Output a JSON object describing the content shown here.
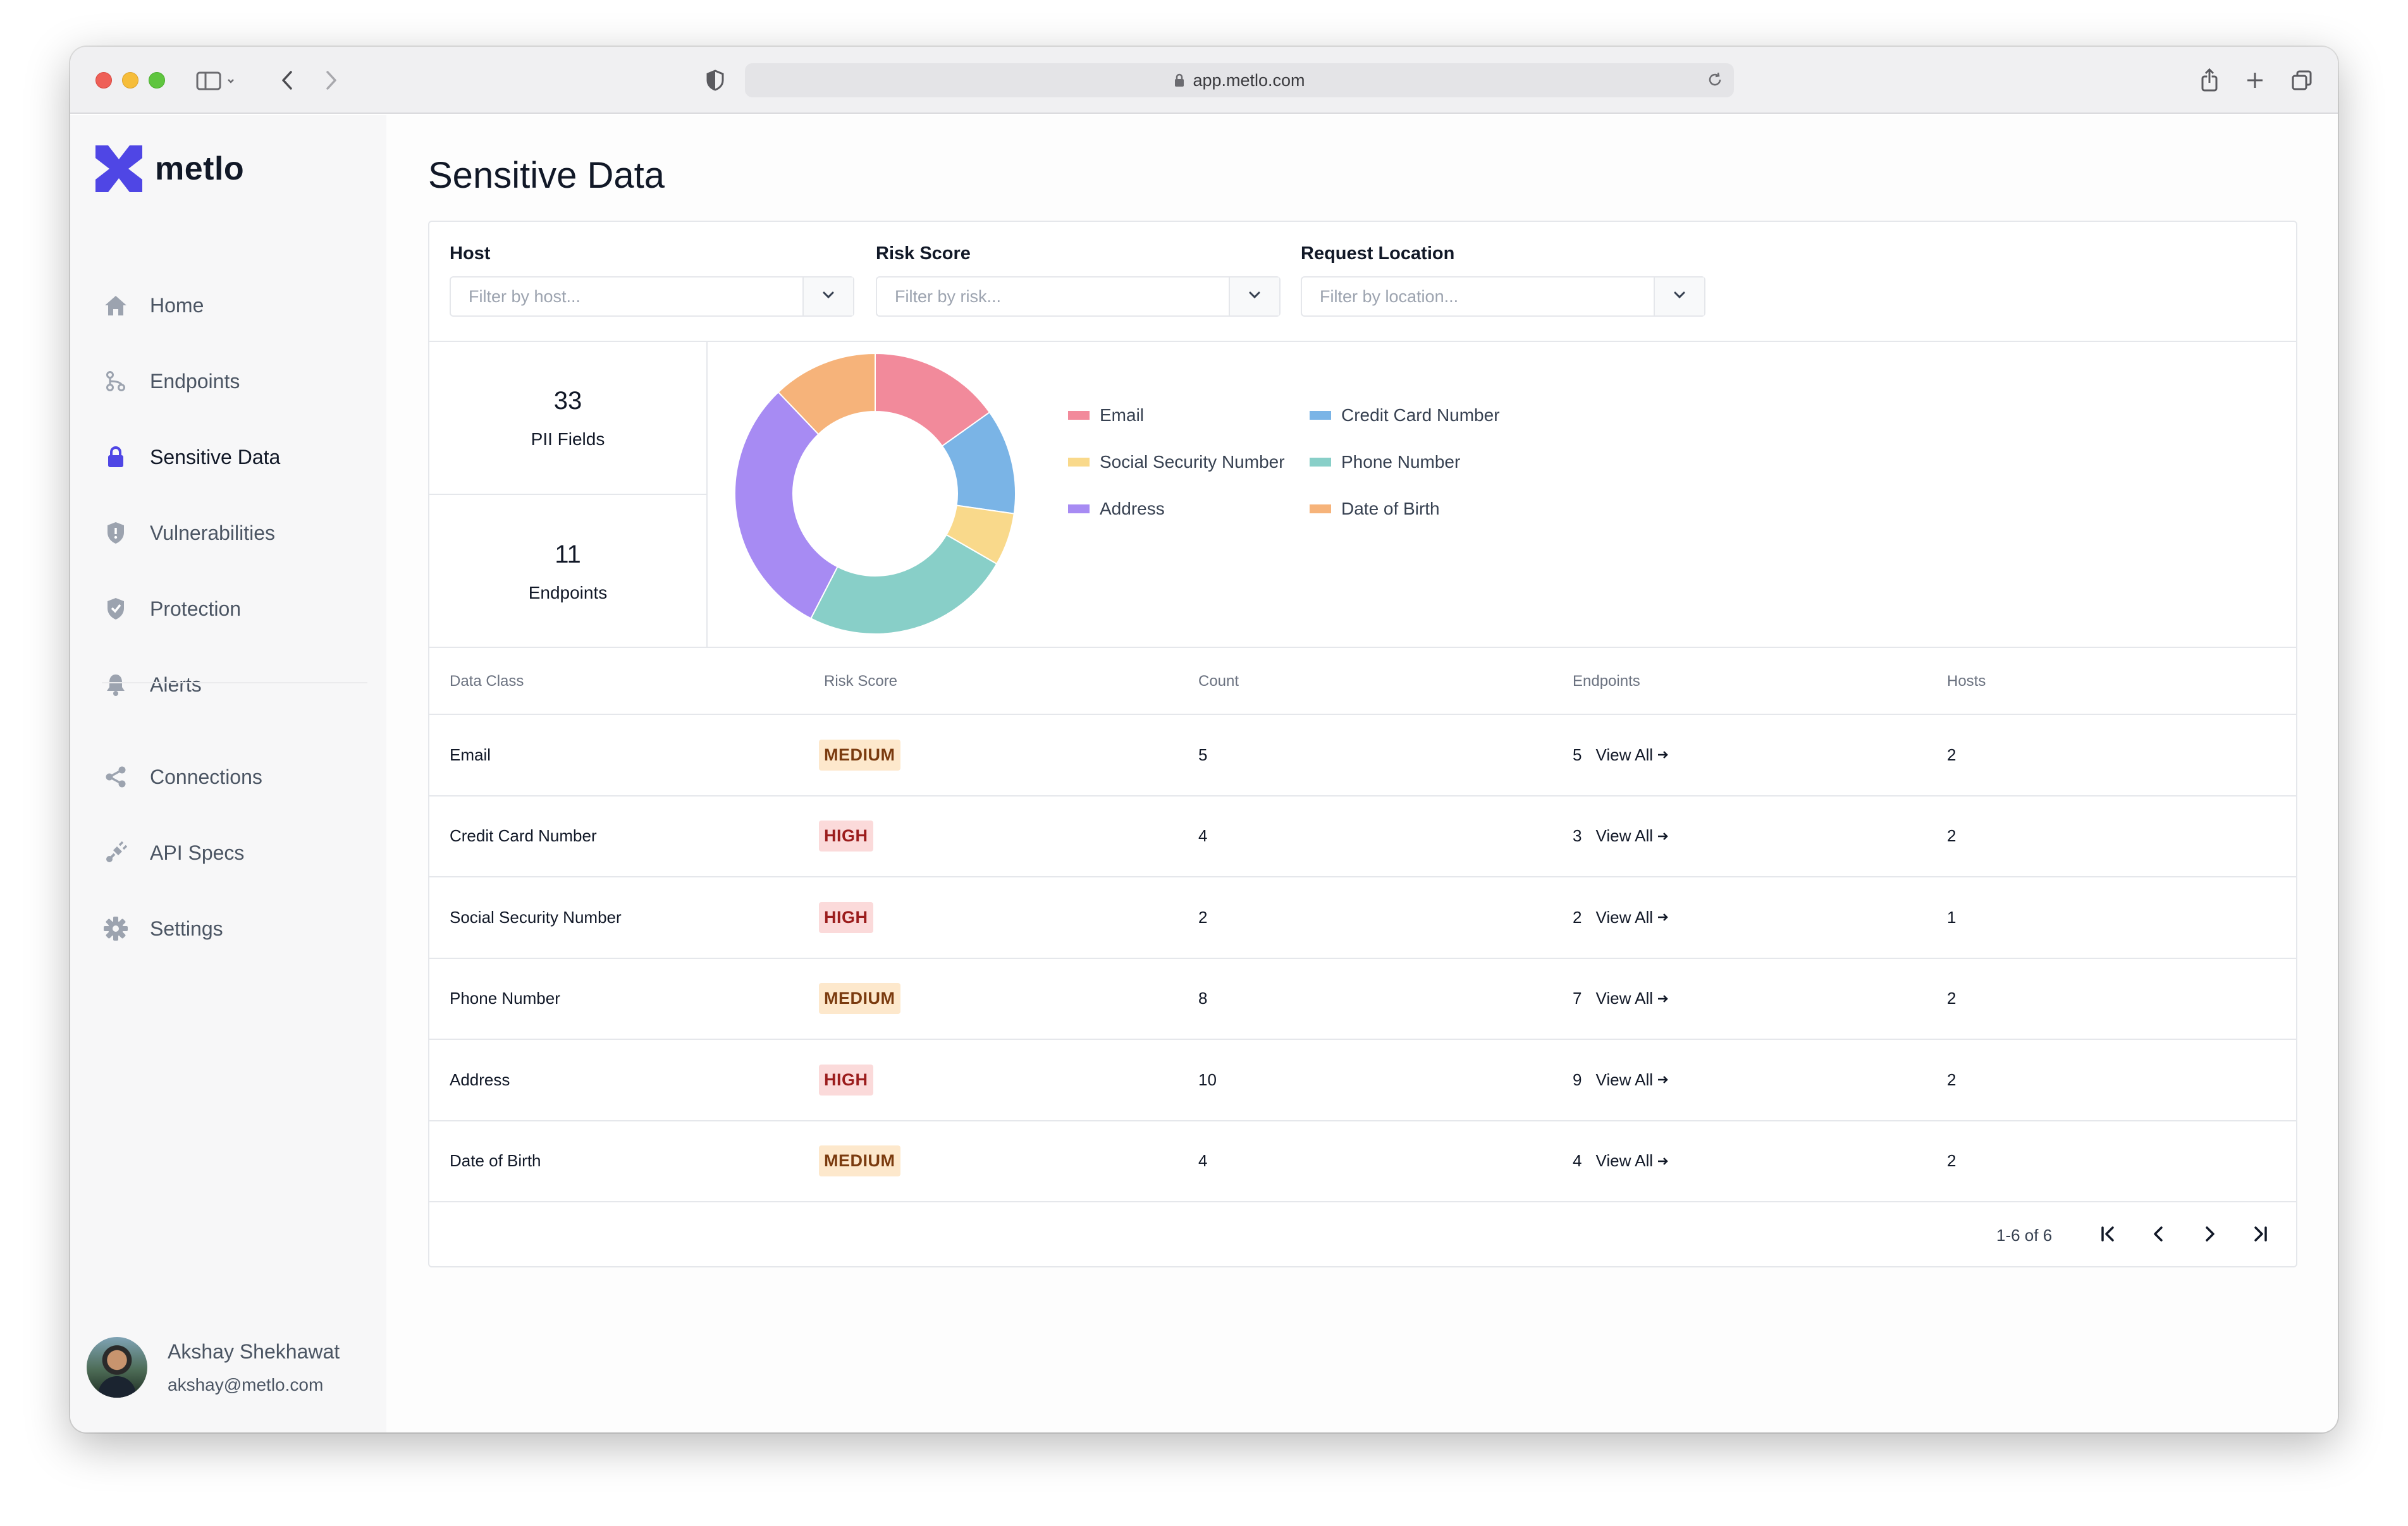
{
  "browser": {
    "url": "app.metlo.com"
  },
  "brand": {
    "name": "metlo",
    "color": "#4f46e5"
  },
  "sidebar": {
    "items": [
      {
        "label": "Home",
        "icon": "home-icon"
      },
      {
        "label": "Endpoints",
        "icon": "endpoints-icon"
      },
      {
        "label": "Sensitive Data",
        "icon": "lock-icon",
        "active": true
      },
      {
        "label": "Vulnerabilities",
        "icon": "shield-alert-icon"
      },
      {
        "label": "Protection",
        "icon": "shield-check-icon"
      },
      {
        "label": "Alerts",
        "icon": "bell-icon"
      },
      {
        "label": "Connections",
        "icon": "share-icon"
      },
      {
        "label": "API Specs",
        "icon": "plug-icon"
      },
      {
        "label": "Settings",
        "icon": "gear-icon"
      }
    ],
    "user": {
      "name": "Akshay Shekhawat",
      "email": "akshay@metlo.com"
    }
  },
  "page": {
    "title": "Sensitive Data"
  },
  "filters": {
    "host": {
      "label": "Host",
      "placeholder": "Filter by host..."
    },
    "risk": {
      "label": "Risk Score",
      "placeholder": "Filter by risk..."
    },
    "location": {
      "label": "Request Location",
      "placeholder": "Filter by location..."
    }
  },
  "stats": {
    "pii_fields": {
      "value": "33",
      "label": "PII Fields"
    },
    "endpoints": {
      "value": "11",
      "label": "Endpoints"
    }
  },
  "chart_data": {
    "type": "pie",
    "categories": [
      "Email",
      "Credit Card Number",
      "Social Security Number",
      "Phone Number",
      "Address",
      "Date of Birth"
    ],
    "values": [
      5,
      4,
      2,
      8,
      10,
      4
    ],
    "colors": [
      "#f28a9b",
      "#7ab4e6",
      "#f9d98b",
      "#88cfc8",
      "#a78bf3",
      "#f6b37a"
    ],
    "donut": true,
    "legend_position": "right"
  },
  "legend": [
    {
      "label": "Email",
      "color": "#f28a9b"
    },
    {
      "label": "Credit Card Number",
      "color": "#7ab4e6"
    },
    {
      "label": "Social Security Number",
      "color": "#f9d98b"
    },
    {
      "label": "Phone Number",
      "color": "#88cfc8"
    },
    {
      "label": "Address",
      "color": "#a78bf3"
    },
    {
      "label": "Date of Birth",
      "color": "#f6b37a"
    }
  ],
  "table": {
    "headers": [
      "Data Class",
      "Risk Score",
      "Count",
      "Endpoints",
      "Hosts"
    ],
    "view_all_label": "View All",
    "rows": [
      {
        "data_class": "Email",
        "risk": "MEDIUM",
        "count": "5",
        "endpoints": "5",
        "hosts": "2"
      },
      {
        "data_class": "Credit Card Number",
        "risk": "HIGH",
        "count": "4",
        "endpoints": "3",
        "hosts": "2"
      },
      {
        "data_class": "Social Security Number",
        "risk": "HIGH",
        "count": "2",
        "endpoints": "2",
        "hosts": "1"
      },
      {
        "data_class": "Phone Number",
        "risk": "MEDIUM",
        "count": "8",
        "endpoints": "7",
        "hosts": "2"
      },
      {
        "data_class": "Address",
        "risk": "HIGH",
        "count": "10",
        "endpoints": "9",
        "hosts": "2"
      },
      {
        "data_class": "Date of Birth",
        "risk": "MEDIUM",
        "count": "4",
        "endpoints": "4",
        "hosts": "2"
      }
    ]
  },
  "pagination": {
    "range": "1-6 of 6"
  }
}
